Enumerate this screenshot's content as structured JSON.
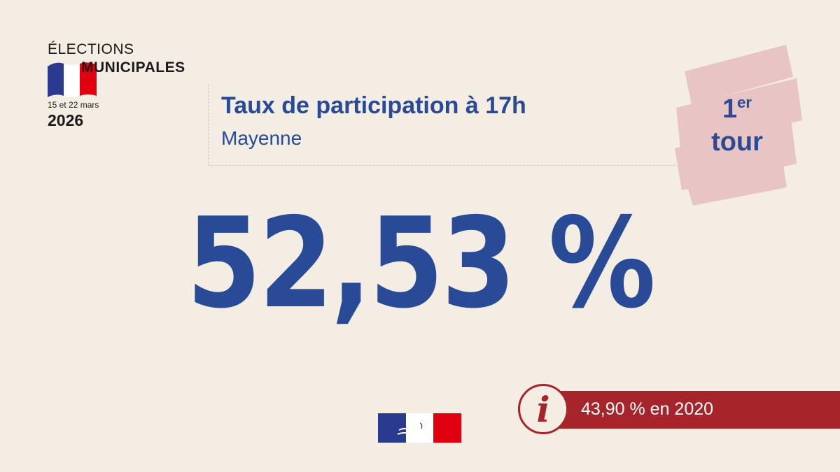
{
  "logo": {
    "line1": "ÉLECTIONS",
    "line2": "MUNICIPALES",
    "dates": "15 et 22 mars",
    "year": "2026",
    "icon": "french-flag-icon"
  },
  "header": {
    "title": "Taux de participation à 17h",
    "subtitle": "Mayenne"
  },
  "badge": {
    "line1_main": "1",
    "line1_sup": "er",
    "line2": "tour",
    "color": "#e8c4c4"
  },
  "main": {
    "value": "52,53 %"
  },
  "info": {
    "icon": "info-icon",
    "text": "43,90 % en 2020",
    "color": "#a8242b"
  },
  "footer": {
    "icon": "republique-francaise-logo"
  },
  "colors": {
    "background": "#f3ede4",
    "primary": "#284a97",
    "accent": "#a8242b",
    "blue": "#2a3b8f",
    "red": "#e1000f"
  }
}
